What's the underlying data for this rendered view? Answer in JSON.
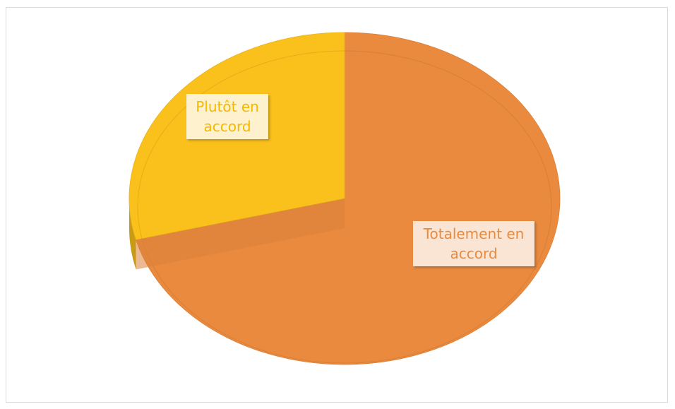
{
  "chart_data": {
    "type": "pie",
    "style": "3d",
    "categories": [
      "Totalement en accord",
      "Plutôt en accord"
    ],
    "values": [
      71,
      29
    ],
    "colors": [
      "#E98A3E",
      "#FAC11C"
    ],
    "label_colors": [
      "#E98A3E",
      "#F5B800"
    ],
    "data_labels": [
      "Totalement en\naccord",
      "Plutôt en\naccord"
    ]
  }
}
